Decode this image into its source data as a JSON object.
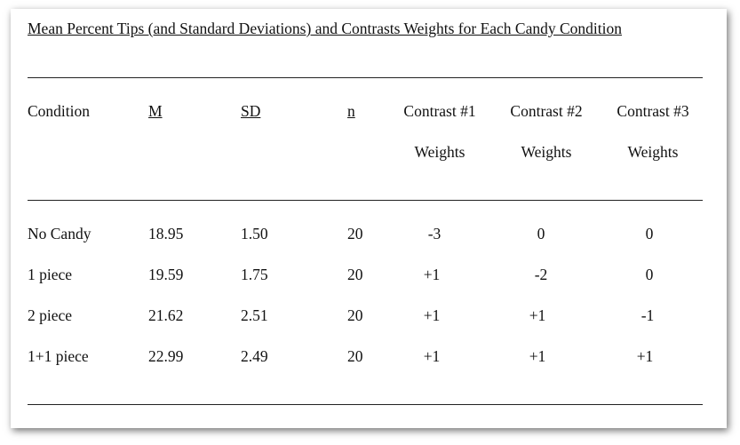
{
  "table": {
    "title": "Mean Percent Tips (and Standard Deviations) and Contrasts Weights for Each Candy Condition",
    "headers": {
      "condition": "Condition",
      "m": "M",
      "sd": "SD",
      "n": "n",
      "contrast1": {
        "line1": "Contrast #1",
        "line2": "Weights"
      },
      "contrast2": {
        "line1": "Contrast #2",
        "line2": "Weights"
      },
      "contrast3": {
        "line1": "Contrast #3",
        "line2": "Weights"
      }
    },
    "rows": [
      {
        "condition": "No Candy",
        "m": "18.95",
        "sd": "1.50",
        "n": "20",
        "c1": "-3",
        "c2": "0",
        "c3": "0"
      },
      {
        "condition": "1 piece",
        "m": "19.59",
        "sd": "1.75",
        "n": "20",
        "c1": "+1",
        "c2": "-2",
        "c3": "0"
      },
      {
        "condition": "2 piece",
        "m": "21.62",
        "sd": "2.51",
        "n": "20",
        "c1": "+1",
        "c2": "+1",
        "c3": "-1"
      },
      {
        "condition": "1+1 piece",
        "m": "22.99",
        "sd": "2.49",
        "n": "20",
        "c1": "+1",
        "c2": "+1",
        "c3": "+1"
      }
    ]
  }
}
